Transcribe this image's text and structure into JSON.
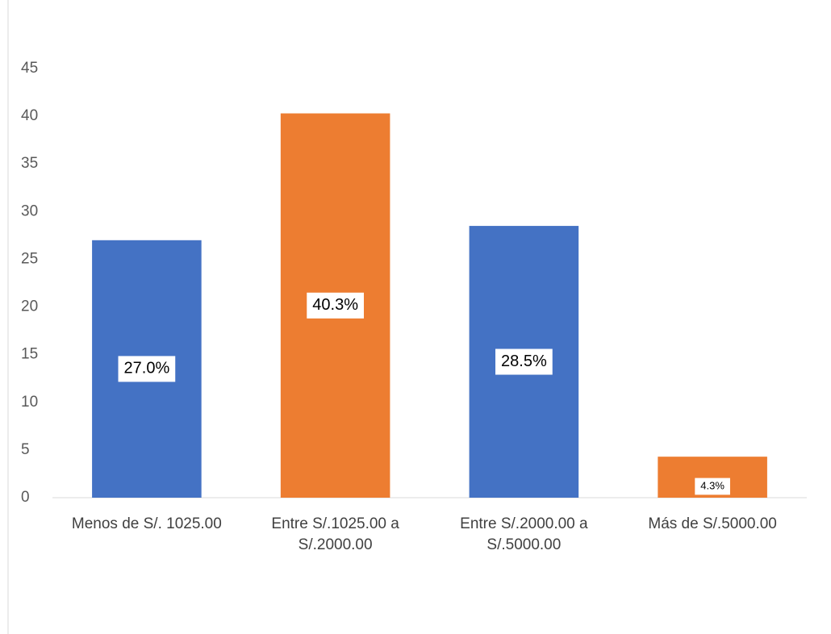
{
  "chart_data": {
    "type": "bar",
    "categories": [
      "Menos de S/. 1025.00",
      "Entre S/.1025.00 a S/.2000.00",
      "Entre S/.2000.00 a S/.5000.00",
      "Más de S/.5000.00"
    ],
    "values": [
      27.0,
      40.3,
      28.5,
      4.3
    ],
    "value_labels": [
      "27.0%",
      "40.3%",
      "28.5%",
      "4.3%"
    ],
    "colors": [
      "#4472c4",
      "#ed7d31",
      "#4472c4",
      "#ed7d31"
    ],
    "ylim": [
      0,
      45
    ],
    "yticks": [
      0,
      5,
      10,
      15,
      20,
      25,
      30,
      35,
      40,
      45
    ],
    "grid": false
  }
}
